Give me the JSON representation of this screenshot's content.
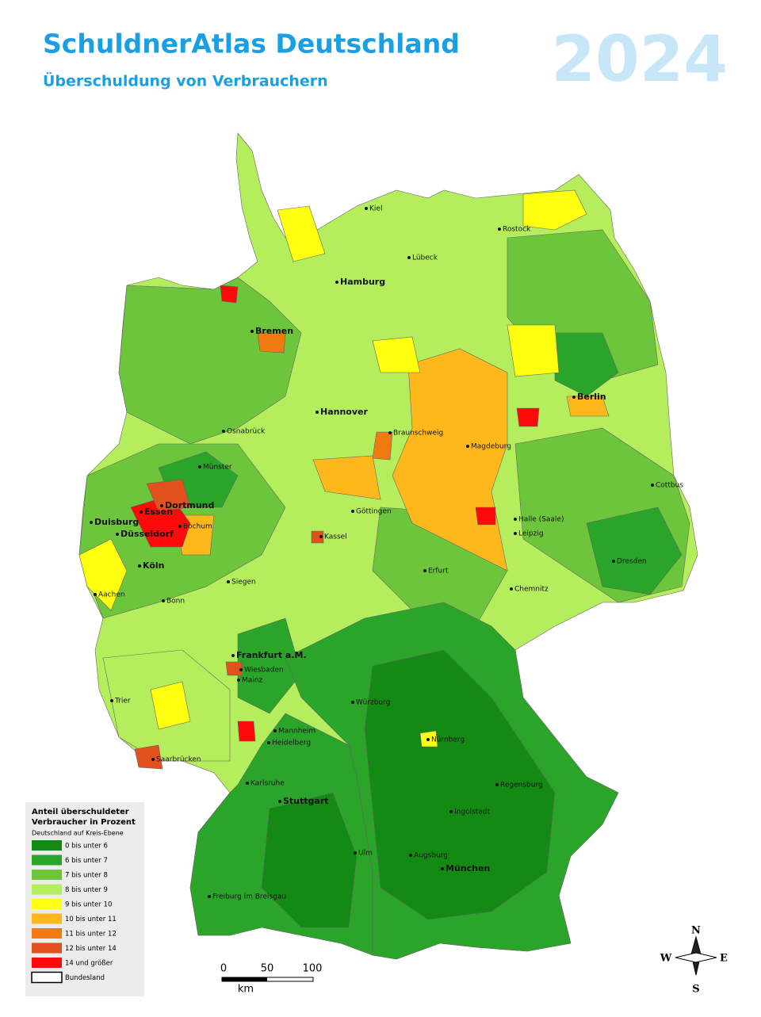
{
  "header": {
    "title": "SchuldnerAtlas Deutschland",
    "subtitle": "Überschuldung von Verbrauchern",
    "year": "2024"
  },
  "cities": [
    "Kiel",
    "Rostock",
    "Lübeck",
    "Hamburg",
    "Bremen",
    "Berlin",
    "Hannover",
    "Osnabrück",
    "Braunschweig",
    "Magdeburg",
    "Münster",
    "Cottbus",
    "Dortmund",
    "Essen",
    "Duisburg",
    "Bochum",
    "Düsseldorf",
    "Göttingen",
    "Halle (Saale)",
    "Leipzig",
    "Kassel",
    "Köln",
    "Erfurt",
    "Dresden",
    "Aachen",
    "Siegen",
    "Bonn",
    "Chemnitz",
    "Frankfurt a.M.",
    "Wiesbaden",
    "Mainz",
    "Trier",
    "Würzburg",
    "Mannheim",
    "Heidelberg",
    "Nürnberg",
    "Saarbrücken",
    "Regensburg",
    "Karlsruhe",
    "Stuttgart",
    "Ingolstadt",
    "Ulm",
    "Augsburg",
    "München",
    "Freiburg im Breisgau"
  ],
  "legend": {
    "title": [
      "Anteil überschuldeter",
      "Verbraucher in Prozent"
    ],
    "subtitle": "Deutschland auf Kreis-Ebene",
    "entries": [
      {
        "label": "0 bis unter 6",
        "color": "#138a13"
      },
      {
        "label": "6 bis unter 7",
        "color": "#2aa52a"
      },
      {
        "label": "7 bis unter 8",
        "color": "#6cc53a"
      },
      {
        "label": "8 bis unter 9",
        "color": "#b5ee5c"
      },
      {
        "label": "9 bis unter 10",
        "color": "#ffff10"
      },
      {
        "label": "10 bis unter 11",
        "color": "#ffb81c"
      },
      {
        "label": "11 bis unter 12",
        "color": "#f07a10"
      },
      {
        "label": "12 bis unter 14",
        "color": "#e2501e"
      },
      {
        "label": "14 und größer",
        "color": "#ff0a0a"
      },
      {
        "label": "Bundesland",
        "color": "#ffffff"
      }
    ]
  },
  "scale": {
    "labels": [
      "0",
      "50",
      "100"
    ],
    "unit": "km"
  },
  "compass": {
    "n": "N",
    "w": "W",
    "e": "E",
    "s": "S"
  }
}
